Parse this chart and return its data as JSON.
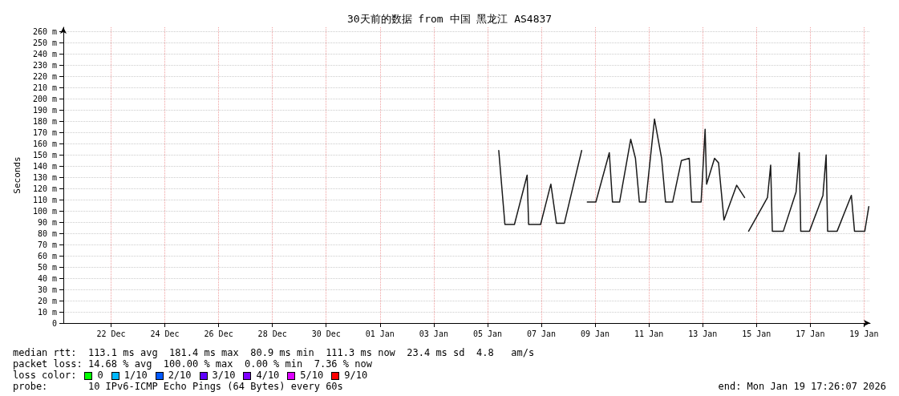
{
  "chart_data": {
    "type": "line",
    "title": "30天前的数据 from 中国 黑龙江 AS4837",
    "ylabel": "Seconds",
    "xlim": [
      "2025-12-20T17:26",
      "2026-01-19T17:26"
    ],
    "xticks": [
      {
        "value": "2025-12-22T12:00",
        "label": "22 Dec"
      },
      {
        "value": "2025-12-24T12:00",
        "label": "24 Dec"
      },
      {
        "value": "2025-12-26T12:00",
        "label": "26 Dec"
      },
      {
        "value": "2025-12-28T12:00",
        "label": "28 Dec"
      },
      {
        "value": "2025-12-30T12:00",
        "label": "30 Dec"
      },
      {
        "value": "2026-01-01T12:00",
        "label": "01 Jan"
      },
      {
        "value": "2026-01-03T12:00",
        "label": "03 Jan"
      },
      {
        "value": "2026-01-05T12:00",
        "label": "05 Jan"
      },
      {
        "value": "2026-01-07T12:00",
        "label": "07 Jan"
      },
      {
        "value": "2026-01-09T12:00",
        "label": "09 Jan"
      },
      {
        "value": "2026-01-11T12:00",
        "label": "11 Jan"
      },
      {
        "value": "2026-01-13T12:00",
        "label": "13 Jan"
      },
      {
        "value": "2026-01-15T12:00",
        "label": "15 Jan"
      },
      {
        "value": "2026-01-17T12:00",
        "label": "17 Jan"
      },
      {
        "value": "2026-01-19T12:00",
        "label": "19 Jan"
      }
    ],
    "ylim": [
      0,
      264
    ],
    "yticks": [
      0,
      {
        "value": 10,
        "label": "10 m"
      },
      {
        "value": 20,
        "label": "20 m"
      },
      {
        "value": 30,
        "label": "30 m"
      },
      {
        "value": 40,
        "label": "40 m"
      },
      {
        "value": 50,
        "label": "50 m"
      },
      {
        "value": 60,
        "label": "60 m"
      },
      {
        "value": 70,
        "label": "70 m"
      },
      {
        "value": 80,
        "label": "80 m"
      },
      {
        "value": 90,
        "label": "90 m"
      },
      {
        "value": 100,
        "label": "100 m"
      },
      {
        "value": 110,
        "label": "110 m"
      },
      {
        "value": 120,
        "label": "120 m"
      },
      {
        "value": 130,
        "label": "130 m"
      },
      {
        "value": 140,
        "label": "140 m"
      },
      {
        "value": 150,
        "label": "150 m"
      },
      {
        "value": 160,
        "label": "160 m"
      },
      {
        "value": 170,
        "label": "170 m"
      },
      {
        "value": 180,
        "label": "180 m"
      },
      {
        "value": 190,
        "label": "190 m"
      },
      {
        "value": 200,
        "label": "200 m"
      },
      {
        "value": 210,
        "label": "210 m"
      },
      {
        "value": 220,
        "label": "220 m"
      },
      {
        "value": 230,
        "label": "230 m"
      },
      {
        "value": 240,
        "label": "240 m"
      },
      {
        "value": 250,
        "label": "250 m"
      },
      {
        "value": 260,
        "label": "260 m"
      }
    ],
    "grid": true,
    "marker": "none",
    "line_style": "solid",
    "series": [
      {
        "color": "#1a1a1a",
        "x": [
          "2026-01-05T22:00",
          "2026-01-06T03:30",
          "2026-01-06T12:00",
          "2026-01-06T23:20",
          "2026-01-07T00:40",
          "2026-01-07T11:20",
          "2026-01-07T20:30",
          "2026-01-08T01:30",
          "2026-01-08T08:30",
          "2026-01-09T00:00",
          "2026-01-09T02:00",
          "2026-01-09T05:00",
          "2026-01-09T12:40",
          "2026-01-10T00:40",
          "2026-01-10T03:30",
          "2026-01-10T09:50",
          "2026-01-10T19:45",
          "2026-01-11T00:00",
          "2026-01-11T03:30",
          "2026-01-11T09:10",
          "2026-01-11T17:00",
          "2026-01-11T23:20",
          "2026-01-12T02:50",
          "2026-01-12T09:10",
          "2026-01-12T17:00",
          "2026-01-13T00:00",
          "2026-01-13T02:10",
          "2026-01-13T10:35",
          "2026-01-13T14:10",
          "2026-01-13T15:30",
          "2026-01-13T22:35",
          "2026-01-14T02:10",
          "2026-01-14T07:00",
          "2026-01-14T18:20",
          "2026-01-15T01:25",
          "2026-01-15T02:30",
          "2026-01-15T05:00",
          "2026-01-15T21:50",
          "2026-01-16T00:40",
          "2026-01-16T02:10",
          "2026-01-16T12:00",
          "2026-01-16T23:20",
          "2026-01-17T02:10",
          "2026-01-17T03:30",
          "2026-01-17T11:20",
          "2026-01-17T23:20",
          "2026-01-18T02:10",
          "2026-01-18T03:30",
          "2026-01-18T12:00",
          "2026-01-19T00:40",
          "2026-01-19T03:30",
          "2026-01-19T12:40",
          "2026-01-19T16:15"
        ],
        "values": [
          154,
          88,
          88,
          132,
          88,
          88,
          124,
          89,
          89,
          154,
          null,
          108,
          108,
          152,
          108,
          108,
          164,
          147,
          108,
          108,
          182,
          147,
          108,
          108,
          145,
          147,
          108,
          108,
          173,
          124,
          147,
          143,
          92,
          123,
          112,
          null,
          82,
          112,
          141,
          82,
          82,
          117,
          152,
          82,
          82,
          114,
          150,
          82,
          82,
          114,
          82,
          82,
          104
        ]
      }
    ],
    "annotations": [
      "median rtt:  113.1 ms avg  181.4 ms max  80.9 ms min  111.3 ms now  23.4 ms sd  4.8   am/s",
      "packet loss: 14.68 % avg  100.00 % max  0.00 % min  7.36 % now",
      "loss color:  0  1/10  2/10  3/10  4/10  5/10  9/10",
      "probe:       10 IPv6-ICMP Echo Pings (64 Bytes) every 60s",
      "end: Mon Jan 19 17:26:07 2026"
    ]
  }
}
